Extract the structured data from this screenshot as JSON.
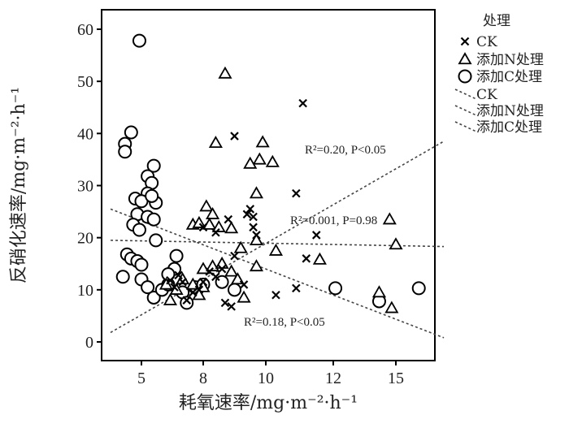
{
  "chart_data": {
    "type": "scatter",
    "xlabel": "耗氧速率/mg·m⁻²·h⁻¹",
    "ylabel": "反硝化速率/mg·m⁻²·h⁻¹",
    "x_ticks": [
      5,
      8,
      10,
      12,
      15
    ],
    "y_ticks": [
      0,
      10,
      20,
      30,
      40,
      50,
      60
    ],
    "ylim": [
      -3,
      63
    ],
    "grid": false,
    "legend": {
      "title": "处理",
      "position": "right",
      "entries": [
        {
          "label": "CK",
          "marker": "x"
        },
        {
          "label": "添加N处理",
          "marker": "triangle"
        },
        {
          "label": "添加C处理",
          "marker": "circle"
        },
        {
          "label": "CK",
          "line": "dotted"
        },
        {
          "label": "添加N处理",
          "line": "dotted"
        },
        {
          "label": "添加C处理",
          "line": "dotted"
        }
      ]
    },
    "annotations": [
      {
        "text": "R²=0.20,  P<0.05"
      },
      {
        "text": "R²=0.001,  P=0.98"
      },
      {
        "text": "R²=0.18,  P<0.05"
      }
    ],
    "series": [
      {
        "name": "CK",
        "marker": "x",
        "points": [
          [
            9.0,
            39.5
          ],
          [
            11.1,
            45.8
          ],
          [
            10.9,
            28.5
          ],
          [
            11.5,
            20.5
          ],
          [
            11.2,
            16.0
          ],
          [
            10.9,
            10.3
          ],
          [
            10.3,
            9.0
          ],
          [
            9.7,
            20.5
          ],
          [
            9.6,
            24.0
          ],
          [
            9.5,
            25.5
          ],
          [
            9.4,
            24.5
          ],
          [
            9.6,
            22.0
          ],
          [
            9.0,
            16.5
          ],
          [
            8.6,
            14.0
          ],
          [
            8.4,
            12.5
          ],
          [
            8.2,
            13.5
          ],
          [
            8.0,
            11.5
          ],
          [
            7.8,
            10.0
          ],
          [
            7.5,
            9.5
          ],
          [
            7.2,
            8.0
          ],
          [
            7.0,
            11.5
          ],
          [
            6.8,
            12.8
          ],
          [
            6.6,
            10.5
          ],
          [
            6.4,
            11.8
          ],
          [
            8.7,
            7.5
          ],
          [
            8.9,
            6.8
          ],
          [
            9.3,
            11.0
          ],
          [
            8.0,
            22.0
          ],
          [
            8.4,
            21.0
          ],
          [
            8.8,
            23.5
          ]
        ]
      },
      {
        "name": "添加N处理",
        "marker": "triangle",
        "points": [
          [
            8.7,
            51.5
          ],
          [
            8.4,
            38.2
          ],
          [
            9.9,
            38.3
          ],
          [
            10.2,
            34.5
          ],
          [
            9.8,
            35.0
          ],
          [
            9.5,
            34.2
          ],
          [
            9.7,
            28.5
          ],
          [
            8.1,
            26.0
          ],
          [
            8.3,
            24.5
          ],
          [
            7.5,
            22.5
          ],
          [
            7.8,
            22.8
          ],
          [
            8.2,
            22.5
          ],
          [
            8.5,
            22.0
          ],
          [
            8.9,
            21.8
          ],
          [
            9.7,
            19.5
          ],
          [
            9.2,
            18.0
          ],
          [
            10.3,
            17.5
          ],
          [
            9.7,
            14.5
          ],
          [
            11.6,
            15.8
          ],
          [
            14.7,
            23.5
          ],
          [
            15.0,
            18.7
          ],
          [
            14.2,
            9.5
          ],
          [
            14.8,
            6.5
          ],
          [
            8.0,
            14.0
          ],
          [
            8.3,
            14.5
          ],
          [
            8.6,
            15.0
          ],
          [
            8.9,
            13.5
          ],
          [
            9.1,
            12.0
          ],
          [
            9.3,
            8.5
          ],
          [
            8.0,
            10.5
          ],
          [
            7.8,
            9.0
          ],
          [
            7.5,
            11.0
          ],
          [
            7.0,
            12.0
          ],
          [
            6.7,
            10.0
          ],
          [
            6.4,
            8.0
          ],
          [
            6.2,
            11.0
          ]
        ]
      },
      {
        "name": "添加C处理",
        "marker": "circle",
        "points": [
          [
            4.9,
            57.8
          ],
          [
            4.2,
            38.0
          ],
          [
            4.2,
            36.5
          ],
          [
            4.5,
            40.2
          ],
          [
            5.6,
            33.8
          ],
          [
            5.3,
            31.8
          ],
          [
            5.5,
            30.5
          ],
          [
            5.3,
            28.5
          ],
          [
            5.7,
            26.7
          ],
          [
            4.7,
            27.5
          ],
          [
            5.0,
            27.0
          ],
          [
            5.5,
            28.0
          ],
          [
            4.8,
            24.5
          ],
          [
            5.3,
            24.0
          ],
          [
            5.6,
            23.5
          ],
          [
            4.6,
            22.5
          ],
          [
            4.9,
            21.5
          ],
          [
            5.7,
            19.5
          ],
          [
            4.3,
            16.8
          ],
          [
            4.5,
            16.0
          ],
          [
            4.8,
            15.5
          ],
          [
            5.0,
            14.8
          ],
          [
            4.1,
            12.5
          ],
          [
            5.0,
            12.0
          ],
          [
            5.3,
            10.5
          ],
          [
            5.6,
            8.5
          ],
          [
            6.0,
            10.0
          ],
          [
            6.3,
            11.0
          ],
          [
            6.6,
            14.0
          ],
          [
            6.7,
            16.5
          ],
          [
            6.3,
            13.0
          ],
          [
            7.0,
            9.5
          ],
          [
            7.2,
            7.5
          ],
          [
            7.6,
            10.5
          ],
          [
            8.0,
            11.0
          ],
          [
            8.6,
            11.5
          ],
          [
            9.0,
            10.0
          ],
          [
            12.1,
            10.3
          ],
          [
            14.2,
            7.8
          ],
          [
            16.1,
            10.3
          ]
        ]
      }
    ],
    "fit_lines": [
      {
        "name": "CK",
        "from": [
          3.5,
          1.8
        ],
        "to": [
          17.3,
          38.5
        ]
      },
      {
        "name": "添加N处理",
        "from": [
          3.5,
          19.5
        ],
        "to": [
          17.3,
          18.3
        ]
      },
      {
        "name": "添加C处理",
        "from": [
          3.5,
          25.5
        ],
        "to": [
          17.3,
          0.8
        ]
      }
    ]
  }
}
